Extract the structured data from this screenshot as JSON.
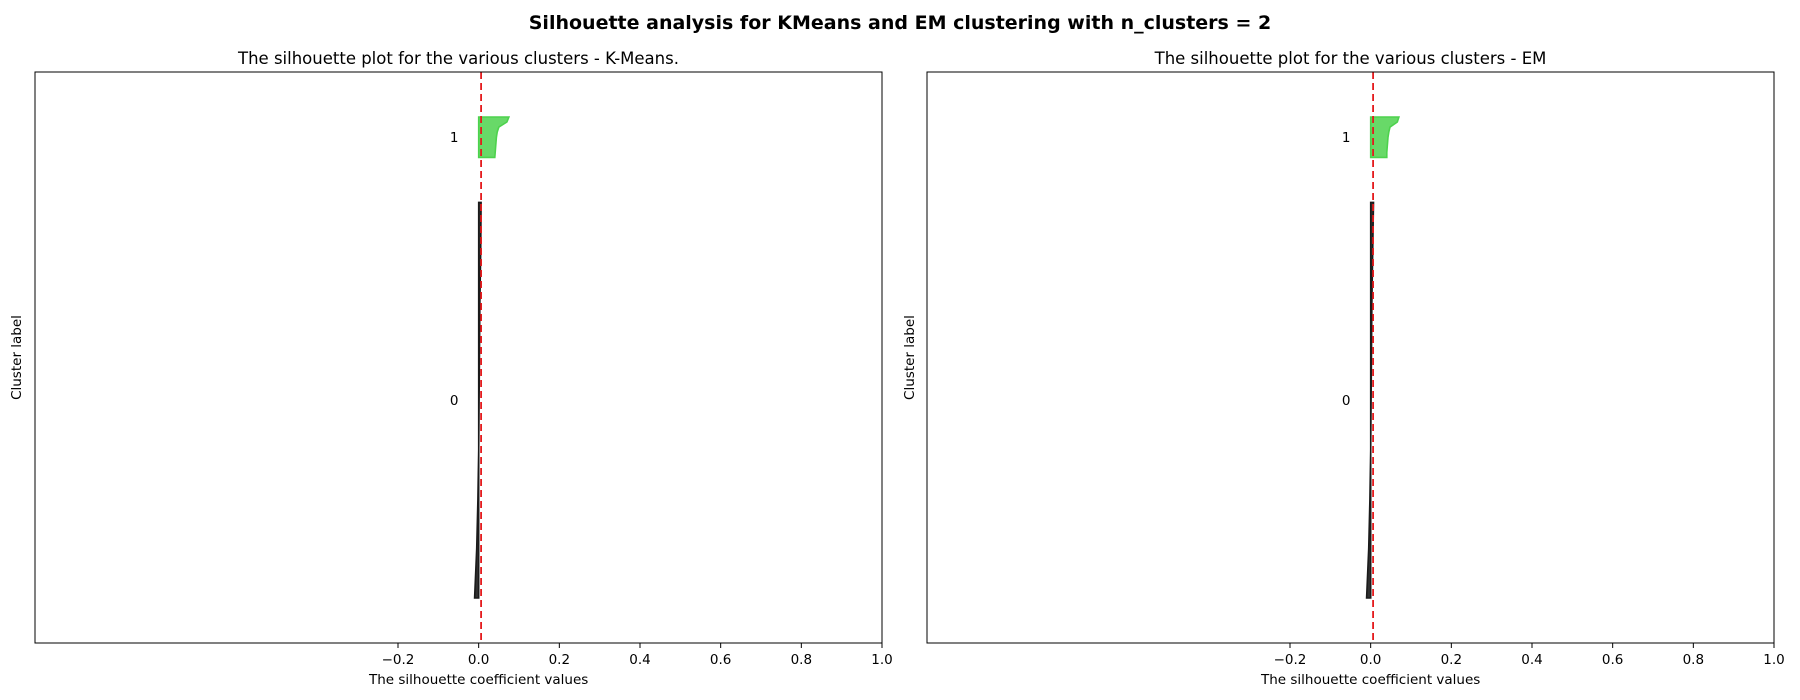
{
  "figure": {
    "suptitle": "Silhouette analysis for KMeans and EM clustering with n_clusters = 2"
  },
  "chart_data": [
    {
      "type": "area",
      "title": "The silhouette plot for the various clusters - K-Means.",
      "xlabel": "The silhouette coefficient values",
      "ylabel": "Cluster label",
      "xlim": [
        -1.1,
        1.0
      ],
      "xticks": [
        -0.2,
        0.0,
        0.2,
        0.4,
        0.6,
        0.8,
        1.0
      ],
      "xtick_labels": [
        "−0.2",
        "0.0",
        "0.2",
        "0.4",
        "0.6",
        "0.8",
        "1.0"
      ],
      "ytick_labels": [
        "1",
        "0"
      ],
      "grid": false,
      "average_silhouette": 0.006,
      "clusters": [
        {
          "label": "0",
          "color": "#1a1a1a",
          "size": 88,
          "profile": [
            0.006,
            0.005,
            0.003,
            0.002,
            0.001,
            0.0,
            -0.002,
            -0.005,
            -0.01
          ]
        },
        {
          "label": "1",
          "color": "#4dd24d",
          "size": 9,
          "profile": [
            0.075,
            0.07,
            0.05,
            0.046,
            0.044,
            0.043,
            0.042,
            0.041,
            0.04
          ]
        }
      ]
    },
    {
      "type": "area",
      "title": "The silhouette plot for the various clusters - EM",
      "xlabel": "The silhouette coefficient values",
      "ylabel": "Cluster label",
      "xlim": [
        -1.1,
        1.0
      ],
      "xticks": [
        -0.2,
        0.0,
        0.2,
        0.4,
        0.6,
        0.8,
        1.0
      ],
      "xtick_labels": [
        "−0.2",
        "0.0",
        "0.2",
        "0.4",
        "0.6",
        "0.8",
        "1.0"
      ],
      "ytick_labels": [
        "1",
        "0"
      ],
      "grid": false,
      "average_silhouette": 0.006,
      "clusters": [
        {
          "label": "0",
          "color": "#1a1a1a",
          "size": 88,
          "profile": [
            0.007,
            0.005,
            0.003,
            0.002,
            0.001,
            0.0,
            -0.002,
            -0.005,
            -0.01
          ]
        },
        {
          "label": "1",
          "color": "#4dd24d",
          "size": 9,
          "profile": [
            0.07,
            0.066,
            0.048,
            0.045,
            0.043,
            0.042,
            0.041,
            0.04,
            0.04
          ]
        }
      ]
    }
  ],
  "colors": {
    "avg_line": "#e41a1c",
    "axes": "#000000"
  }
}
